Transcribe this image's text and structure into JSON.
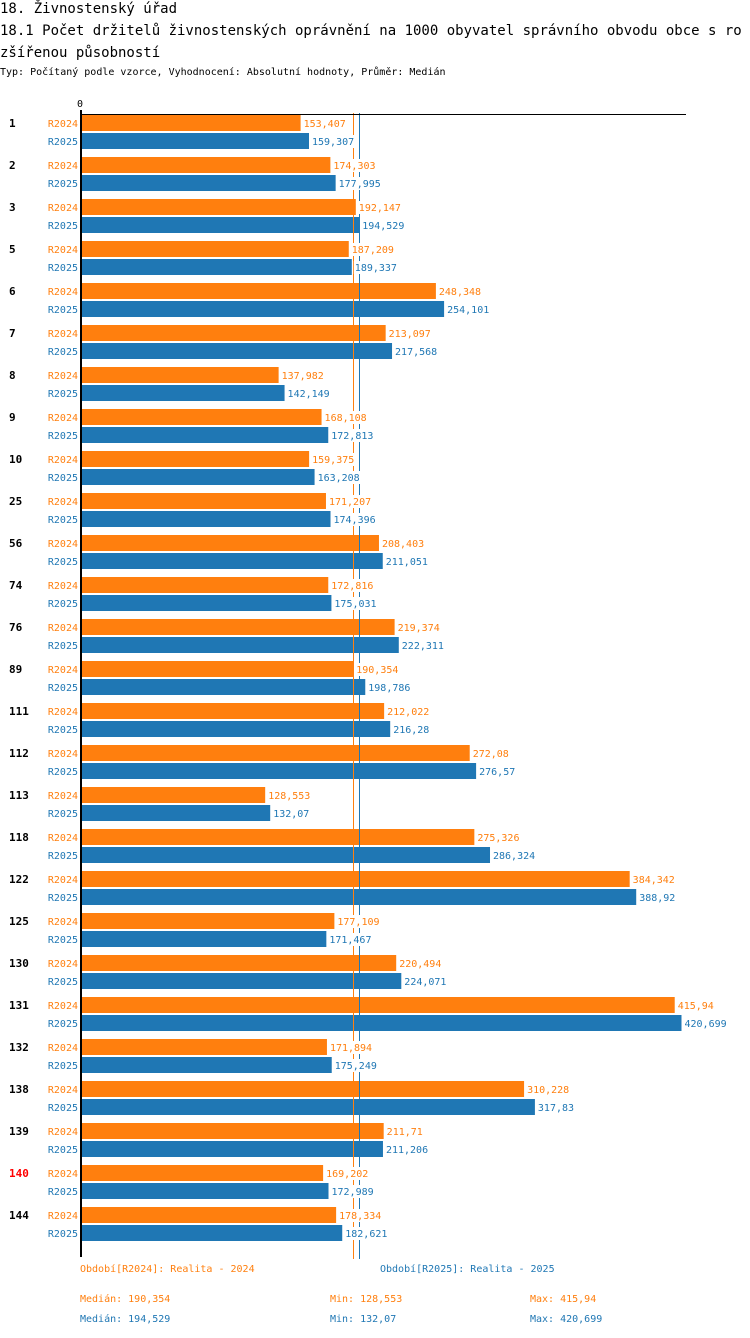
{
  "header": {
    "title": "18. Živnostenský úřad",
    "subtitle": "18.1 Počet držitelů živnostenských oprávnění na 1000 obyvatel správního obvodu obce s rozšířenou působností",
    "info": "Typ: Počítaný podle vzorce, Vyhodnocení: Absolutní hodnoty, Průměr: Medián"
  },
  "colors": {
    "R2024": "#ff7f0e",
    "R2025": "#1f77b4",
    "highlight": "#ff0000",
    "axis": "#000000"
  },
  "chart_data": {
    "type": "bar",
    "orientation": "horizontal",
    "title": "18.1 Počet držitelů živnostenských oprávnění na 1000 obyvatel správního obvodu obce s rozšířenou působností",
    "xlabel": "",
    "ylabel": "",
    "axis_zero_label": "0",
    "xlim": [
      0,
      425
    ],
    "grid": false,
    "legend_position": "bottom",
    "highlighted_category": "140",
    "categories": [
      "1",
      "2",
      "3",
      "5",
      "6",
      "7",
      "8",
      "9",
      "10",
      "25",
      "56",
      "74",
      "76",
      "89",
      "111",
      "112",
      "113",
      "118",
      "122",
      "125",
      "130",
      "131",
      "132",
      "138",
      "139",
      "140",
      "144"
    ],
    "series": [
      {
        "name": "R2024",
        "values": [
          153.407,
          174.303,
          192.147,
          187.209,
          248.348,
          213.097,
          137.982,
          168.108,
          159.375,
          171.207,
          208.403,
          172.816,
          219.374,
          190.354,
          212.022,
          272.08,
          128.553,
          275.326,
          384.342,
          177.109,
          220.494,
          415.94,
          171.894,
          310.228,
          211.71,
          169.202,
          178.334
        ],
        "labels": [
          "153,407",
          "174,303",
          "192,147",
          "187,209",
          "248,348",
          "213,097",
          "137,982",
          "168,108",
          "159,375",
          "171,207",
          "208,403",
          "172,816",
          "219,374",
          "190,354",
          "212,022",
          "272,08",
          "128,553",
          "275,326",
          "384,342",
          "177,109",
          "220,494",
          "415,94",
          "171,894",
          "310,228",
          "211,71",
          "169,202",
          "178,334"
        ],
        "median": 190.354
      },
      {
        "name": "R2025",
        "values": [
          159.307,
          177.995,
          194.529,
          189.337,
          254.101,
          217.568,
          142.149,
          172.813,
          163.208,
          174.396,
          211.051,
          175.031,
          222.311,
          198.786,
          216.28,
          276.57,
          132.07,
          286.324,
          388.92,
          171.467,
          224.071,
          420.699,
          175.249,
          317.83,
          211.206,
          172.989,
          182.621
        ],
        "labels": [
          "159,307",
          "177,995",
          "194,529",
          "189,337",
          "254,101",
          "217,568",
          "142,149",
          "172,813",
          "163,208",
          "174,396",
          "211,051",
          "175,031",
          "222,311",
          "198,786",
          "216,28",
          "276,57",
          "132,07",
          "286,324",
          "388,92",
          "171,467",
          "224,071",
          "420,699",
          "175,249",
          "317,83",
          "211,206",
          "172,989",
          "182,621"
        ],
        "median": 194.529
      }
    ]
  },
  "legend": {
    "R2024": {
      "period": "Období[R2024]: Realita - 2024",
      "median": "Medián: 190,354",
      "min": "Min: 128,553",
      "max": "Max: 415,94"
    },
    "R2025": {
      "period": "Období[R2025]: Realita - 2025",
      "median": "Medián: 194,529",
      "min": "Min: 132,07",
      "max": "Max: 420,699"
    }
  }
}
